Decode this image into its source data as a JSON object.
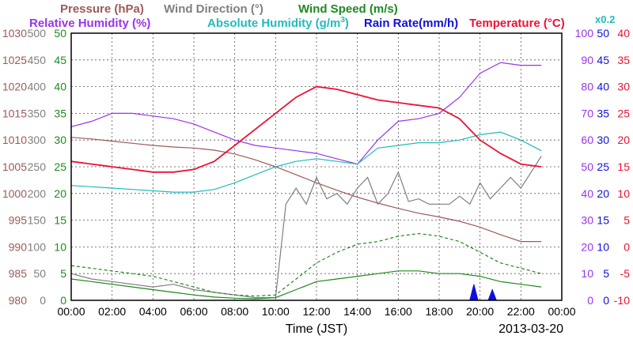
{
  "legend": {
    "pressure": "Pressure (hPa)",
    "wind_direction": "Wind Direction (°)",
    "wind_speed": "Wind Speed (m/s)",
    "relative_humidity": "Relative Humidity (%)",
    "absolute_humidity_pre": "Absolute Humidity (g/m",
    "absolute_humidity_sup": "3",
    "absolute_humidity_post": ")",
    "rain_rate": "Rain Rate(mm/h)",
    "temperature": "Temperature (°C)",
    "scale_note": "x0.2"
  },
  "colors": {
    "pressure": "#9c5a5a",
    "wind_direction": "#7f7f7f",
    "wind_speed": "#1e8a1e",
    "relative_humidity": "#9933ee",
    "absolute_humidity": "#22bbbb",
    "rain_rate": "#1010dd",
    "temperature": "#ee1133",
    "frame": "#000000",
    "grid": "#555555"
  },
  "chart_data": {
    "type": "line",
    "xlabel": "Time (JST)",
    "date": "2013-03-20",
    "x_ticks": [
      "00:00",
      "02:00",
      "04:00",
      "06:00",
      "08:00",
      "10:00",
      "12:00",
      "14:00",
      "16:00",
      "18:00",
      "20:00",
      "22:00",
      "00:00"
    ],
    "x_range": [
      0,
      24
    ],
    "grid": true,
    "axes": {
      "pressure": {
        "ticks": [
          "1030",
          "1025",
          "1020",
          "1015",
          "1010",
          "1005",
          "1000",
          "995",
          "990",
          "985",
          "980"
        ],
        "range": [
          980,
          1030
        ]
      },
      "wind_direction": {
        "ticks": [
          "500",
          "450",
          "400",
          "350",
          "300",
          "250",
          "200",
          "150",
          "100",
          "50",
          "0"
        ],
        "range": [
          0,
          500
        ]
      },
      "wind_speed": {
        "ticks": [
          "50",
          "45",
          "40",
          "35",
          "30",
          "25",
          "20",
          "15",
          "10",
          "5",
          "0"
        ],
        "range": [
          0,
          50
        ]
      },
      "relative_humidity": {
        "ticks": [
          "100",
          "90",
          "80",
          "70",
          "60",
          "50",
          "40",
          "30",
          "20",
          "10",
          "0"
        ],
        "range": [
          0,
          100
        ]
      },
      "rain_rate": {
        "ticks": [
          "50",
          "45",
          "40",
          "35",
          "30",
          "25",
          "20",
          "15",
          "10",
          "5",
          "0"
        ],
        "range": [
          0,
          50
        ]
      },
      "temperature": {
        "ticks": [
          "40",
          "35",
          "30",
          "25",
          "20",
          "15",
          "10",
          "5",
          "0",
          "-5",
          "-10"
        ],
        "range": [
          -10,
          40
        ]
      }
    },
    "series": [
      {
        "name": "Pressure (hPa)",
        "axis": "pressure",
        "style": "solid",
        "x": [
          0,
          1,
          2,
          3,
          4,
          5,
          6,
          7,
          8,
          9,
          10,
          11,
          12,
          13,
          14,
          15,
          16,
          17,
          18,
          19,
          20,
          21,
          22,
          23
        ],
        "y": [
          1010.5,
          1010.2,
          1009.8,
          1009.4,
          1009.0,
          1008.7,
          1008.5,
          1008.1,
          1007.4,
          1006.3,
          1005.0,
          1003.5,
          1002.0,
          1000.6,
          999.3,
          998.2,
          997.2,
          996.3,
          995.6,
          994.8,
          993.7,
          992.3,
          991.0,
          991.0
        ]
      },
      {
        "name": "Wind Direction (°)",
        "axis": "wind_direction",
        "style": "solid",
        "x": [
          0,
          1,
          2,
          3,
          4,
          5,
          6,
          7,
          8,
          9,
          10,
          10.5,
          11,
          11.5,
          12,
          12.5,
          13,
          13.5,
          14,
          14.5,
          15,
          15.5,
          16,
          16.5,
          17,
          17.5,
          18,
          18.5,
          19,
          19.5,
          20,
          20.5,
          21,
          21.5,
          22,
          22.5,
          23
        ],
        "y": [
          50,
          40,
          35,
          30,
          25,
          30,
          20,
          15,
          10,
          5,
          5,
          180,
          210,
          180,
          230,
          190,
          200,
          180,
          210,
          230,
          180,
          200,
          240,
          185,
          190,
          180,
          180,
          180,
          195,
          180,
          220,
          190,
          210,
          230,
          210,
          240,
          270
        ]
      },
      {
        "name": "Wind Speed (m/s)",
        "axis": "wind_speed",
        "style": "solid",
        "x": [
          0,
          1,
          2,
          3,
          4,
          5,
          6,
          7,
          8,
          9,
          10,
          11,
          12,
          13,
          14,
          15,
          16,
          17,
          18,
          19,
          20,
          21,
          22,
          23
        ],
        "y": [
          4,
          3.5,
          3,
          2.5,
          2,
          1.5,
          1,
          0.6,
          0.4,
          0.3,
          0.5,
          2,
          3.5,
          4,
          4.5,
          5,
          5.5,
          5.5,
          5,
          5,
          4.5,
          3.5,
          3,
          2.5
        ]
      },
      {
        "name": "Wind Speed (m/s)",
        "axis": "wind_speed",
        "style": "dashed",
        "x": [
          0,
          1,
          2,
          3,
          4,
          5,
          6,
          7,
          8,
          9,
          10,
          11,
          12,
          13,
          14,
          15,
          16,
          17,
          18,
          19,
          20,
          21,
          22,
          23
        ],
        "y": [
          6.5,
          6,
          5.5,
          5,
          4.5,
          3.5,
          2.5,
          1.5,
          1,
          0.8,
          1,
          4,
          7,
          9,
          10.5,
          11,
          12,
          12.5,
          12,
          11,
          9,
          7,
          6,
          5
        ]
      },
      {
        "name": "Relative Humidity (%)",
        "axis": "relative_humidity",
        "style": "solid",
        "x": [
          0,
          1,
          2,
          3,
          4,
          5,
          6,
          7,
          8,
          9,
          10,
          11,
          12,
          13,
          14,
          15,
          16,
          17,
          18,
          19,
          20,
          21,
          22,
          23
        ],
        "y": [
          65,
          67,
          70,
          70,
          69,
          68,
          66,
          63,
          60,
          58,
          57,
          56,
          55,
          53,
          51,
          60,
          67,
          68,
          70,
          76,
          85,
          89,
          88,
          88
        ]
      },
      {
        "name": "Absolute Humidity (g/m3)",
        "axis": "absolute_humidity",
        "style": "solid",
        "x": [
          0,
          1,
          2,
          3,
          4,
          5,
          6,
          7,
          8,
          9,
          10,
          11,
          12,
          13,
          14,
          15,
          16,
          17,
          18,
          19,
          20,
          21,
          22,
          23
        ],
        "y": [
          43,
          42.5,
          42,
          41.5,
          41,
          40.5,
          40.5,
          41.5,
          44,
          47,
          50,
          52,
          53,
          52,
          51,
          57,
          58,
          59,
          59,
          60,
          62,
          63,
          60,
          56
        ]
      },
      {
        "name": "Rain Rate(mm/h)",
        "axis": "rain_rate",
        "style": "area",
        "x": [
          0,
          19.5,
          19.7,
          19.9,
          20.1,
          20.4,
          20.6,
          20.8,
          24
        ],
        "y": [
          0,
          0,
          3,
          0,
          0,
          0,
          2,
          0,
          0
        ]
      },
      {
        "name": "Temperature (°C)",
        "axis": "temperature",
        "style": "solid",
        "x": [
          0,
          1,
          2,
          3,
          4,
          5,
          6,
          7,
          8,
          9,
          10,
          11,
          12,
          13,
          14,
          15,
          16,
          17,
          18,
          19,
          20,
          21,
          22,
          23
        ],
        "y": [
          16,
          15.5,
          15,
          14.5,
          14,
          14,
          14.5,
          16,
          19,
          22,
          25,
          28,
          30,
          29.5,
          28.5,
          27.5,
          27,
          26.5,
          26,
          24,
          20,
          17.5,
          15.5,
          15
        ]
      }
    ]
  }
}
